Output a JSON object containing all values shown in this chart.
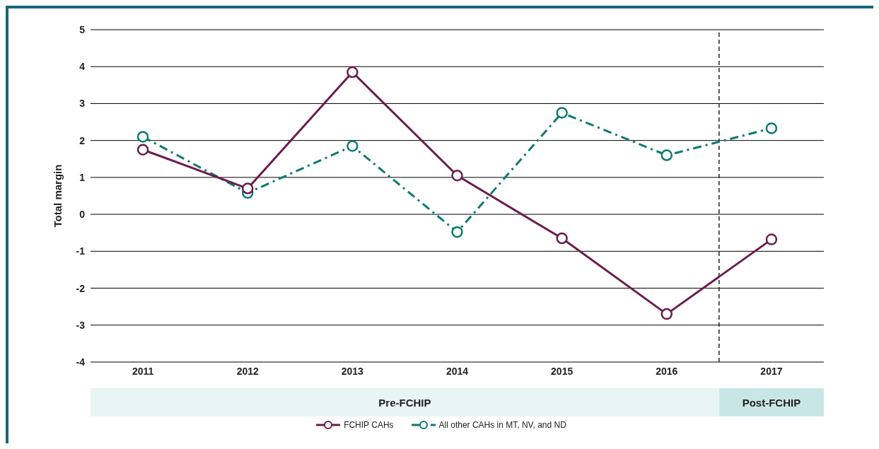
{
  "chart_data": {
    "type": "line",
    "ylabel": "Total margin",
    "x": [
      2011,
      2012,
      2013,
      2014,
      2015,
      2016,
      2017
    ],
    "xlim": [
      2010.5,
      2017.5
    ],
    "xticks": [
      2011,
      2012,
      2013,
      2014,
      2015,
      2016,
      2017
    ],
    "ylim": [
      -4,
      5
    ],
    "yticks": [
      -4,
      -3,
      -2,
      -1,
      0,
      1,
      2,
      3,
      4,
      5
    ],
    "grid": "y",
    "legend": "bottom",
    "marker": "circle",
    "series": [
      {
        "name": "FCHIP CAHs",
        "color": "#6b1d4f",
        "line_style": "solid",
        "values": [
          1.75,
          0.7,
          3.85,
          1.05,
          -0.65,
          -2.7,
          -0.68
        ]
      },
      {
        "name": "All other CAHs in MT, NV, and ND",
        "color": "#0f7a72",
        "line_style": "dashdot",
        "values": [
          2.1,
          0.58,
          1.85,
          -0.48,
          2.75,
          1.6,
          2.33
        ]
      }
    ],
    "ref_lines": [
      {
        "axis": "x",
        "value": 2016.5,
        "color": "#222222",
        "line_style": "dashed"
      }
    ],
    "annotations": [
      "Pre-FCHIP",
      "Post-FCHIP"
    ]
  }
}
